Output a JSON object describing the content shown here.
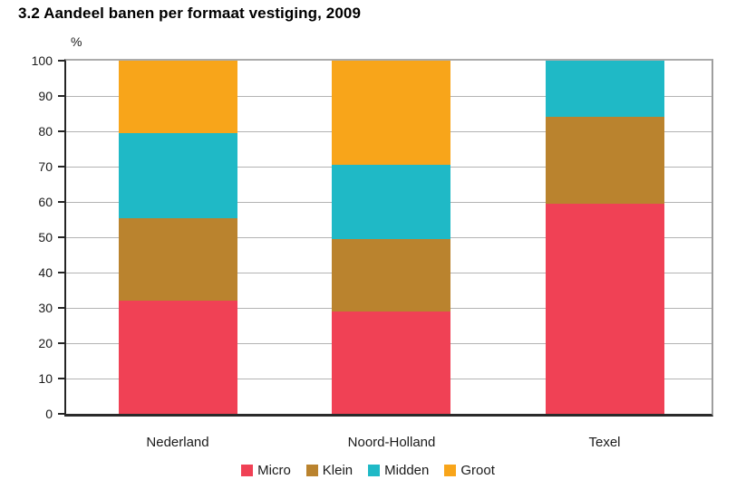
{
  "page": {
    "title": "3.2 Aandeel banen per formaat vestiging, 2009"
  },
  "chart_data": {
    "type": "bar",
    "stacked": true,
    "title": "3.2 Aandeel banen per formaat vestiging, 2009",
    "ylabel": "%",
    "ylim": [
      0,
      100
    ],
    "ytick_step": 10,
    "grid": true,
    "legend_position": "bottom",
    "categories": [
      "Nederland",
      "Noord-Holland",
      "Texel"
    ],
    "series": [
      {
        "name": "Micro",
        "color": "#F04155",
        "values": [
          32,
          29,
          59.5
        ]
      },
      {
        "name": "Klein",
        "color": "#BA832E",
        "values": [
          23.5,
          20.5,
          24.5
        ]
      },
      {
        "name": "Midden",
        "color": "#1FB9C6",
        "values": [
          24,
          21,
          16
        ]
      },
      {
        "name": "Groot",
        "color": "#F8A51A",
        "values": [
          20.5,
          29.5,
          0
        ]
      }
    ],
    "axis_colors": {
      "axis_line": "#262626",
      "frame_border": "#a6a6a6",
      "gridline": "#b3b3b3"
    }
  }
}
